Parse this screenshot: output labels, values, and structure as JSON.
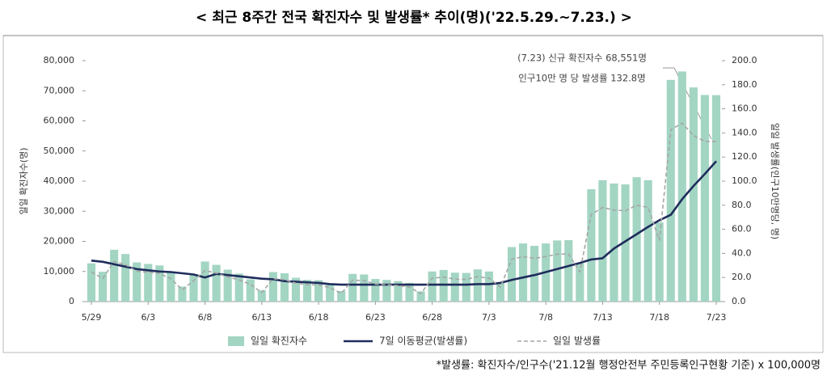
{
  "chart_data": {
    "type": "combo",
    "title": "< 최근 8주간 전국 확진자수 및 발생률* 추이(명)('22.5.29.~7.23.) >",
    "annotations": [
      "(7.23) 신규 확진자수 68,551명",
      "인구10만 명 당 발생률 132.8명"
    ],
    "footnote": "*발생률: 확진자수/인구수('21.12월 행정안전부 주민등록인구현황 기준) x 100,000명",
    "ylabel": "일일 확진자수(명)",
    "y2label": "일일 발생률(인구10만명당, 명)",
    "categories": [
      "5/29",
      null,
      null,
      null,
      null,
      "6/3",
      null,
      null,
      null,
      null,
      "6/8",
      null,
      null,
      null,
      null,
      "6/13",
      null,
      null,
      null,
      null,
      "6/18",
      null,
      null,
      null,
      null,
      "6/23",
      null,
      null,
      null,
      null,
      "6/28",
      null,
      null,
      null,
      null,
      "7/3",
      null,
      null,
      null,
      null,
      "7/8",
      null,
      null,
      null,
      null,
      "7/13",
      null,
      null,
      null,
      null,
      "7/18",
      null,
      null,
      null,
      null,
      "7/23"
    ],
    "series": [
      {
        "name": "일일 확진자수",
        "type": "bar",
        "color": "#a3d5c3",
        "values": [
          12700,
          9900,
          17200,
          15800,
          13000,
          12500,
          12000,
          9800,
          5000,
          9000,
          13300,
          12200,
          10600,
          9300,
          7400,
          3800,
          9800,
          9400,
          7900,
          7200,
          7100,
          6000,
          3500,
          9200,
          9000,
          7500,
          7200,
          6800,
          6200,
          3400,
          10000,
          10500,
          9600,
          9500,
          10700,
          10000,
          6200,
          18100,
          19300,
          18500,
          19300,
          20300,
          20400,
          12700,
          37300,
          40300,
          39200,
          38900,
          41300,
          40300,
          26300,
          73600,
          76400,
          71100,
          68600,
          68551
        ]
      },
      {
        "name": "7일 이동평균(발생률)",
        "type": "line",
        "axis": "y2",
        "color": "#1f2d5c",
        "dashed": false,
        "values": [
          34,
          33,
          31,
          29,
          27,
          26,
          25,
          24.5,
          23.5,
          22.5,
          20,
          23,
          22,
          21,
          20,
          19,
          18.5,
          17,
          16.5,
          16,
          15.5,
          14.5,
          14,
          14,
          14,
          14,
          14,
          14,
          14,
          14,
          14,
          14,
          14,
          14,
          14.5,
          14.5,
          15.5,
          18,
          20,
          22,
          24.5,
          27,
          29.5,
          32,
          35,
          36,
          44,
          50,
          56,
          62,
          67.5,
          72,
          85,
          96,
          106,
          116.5
        ]
      },
      {
        "name": "일일 발생률",
        "type": "line",
        "axis": "y2",
        "color": "#a6a6a6",
        "dashed": true,
        "values": [
          24.6,
          19.2,
          33.3,
          30.6,
          25.2,
          24.3,
          23.3,
          19.0,
          9.7,
          17.4,
          25.8,
          23.6,
          20.5,
          18.0,
          14.3,
          7.4,
          19.0,
          18.2,
          15.3,
          14.0,
          13.8,
          11.6,
          6.8,
          17.8,
          17.4,
          14.5,
          14.0,
          13.2,
          12.0,
          6.6,
          19.4,
          20.3,
          18.6,
          18.4,
          20.7,
          19.4,
          12.0,
          35.1,
          37.4,
          35.9,
          37.4,
          39.3,
          39.5,
          24.6,
          72.3,
          78.1,
          76.0,
          75.4,
          80.0,
          78.1,
          51.0,
          142.6,
          148.1,
          137.8,
          132.9,
          132.8
        ]
      }
    ],
    "ylim": [
      0,
      80000
    ],
    "yticks": [
      {
        "value": 0,
        "label": "0"
      },
      {
        "value": 10000,
        "label": "10,000"
      },
      {
        "value": 20000,
        "label": "20,000"
      },
      {
        "value": 30000,
        "label": "30,000"
      },
      {
        "value": 40000,
        "label": "40,000"
      },
      {
        "value": 50000,
        "label": "50,000"
      },
      {
        "value": 60000,
        "label": "60,000"
      },
      {
        "value": 70000,
        "label": "70,000"
      },
      {
        "value": 80000,
        "label": "80,000"
      }
    ],
    "y2lim": [
      0,
      200
    ],
    "y2ticks": [
      {
        "value": 0,
        "label": "0.0"
      },
      {
        "value": 20,
        "label": "20.0"
      },
      {
        "value": 40,
        "label": "40.0"
      },
      {
        "value": 60,
        "label": "60.0"
      },
      {
        "value": 80,
        "label": "80.0"
      },
      {
        "value": 100,
        "label": "100.0"
      },
      {
        "value": 120,
        "label": "120.0"
      },
      {
        "value": 140,
        "label": "140.0"
      },
      {
        "value": 160,
        "label": "160.0"
      },
      {
        "value": 180,
        "label": "180.0"
      },
      {
        "value": 200,
        "label": "200.0"
      }
    ]
  }
}
